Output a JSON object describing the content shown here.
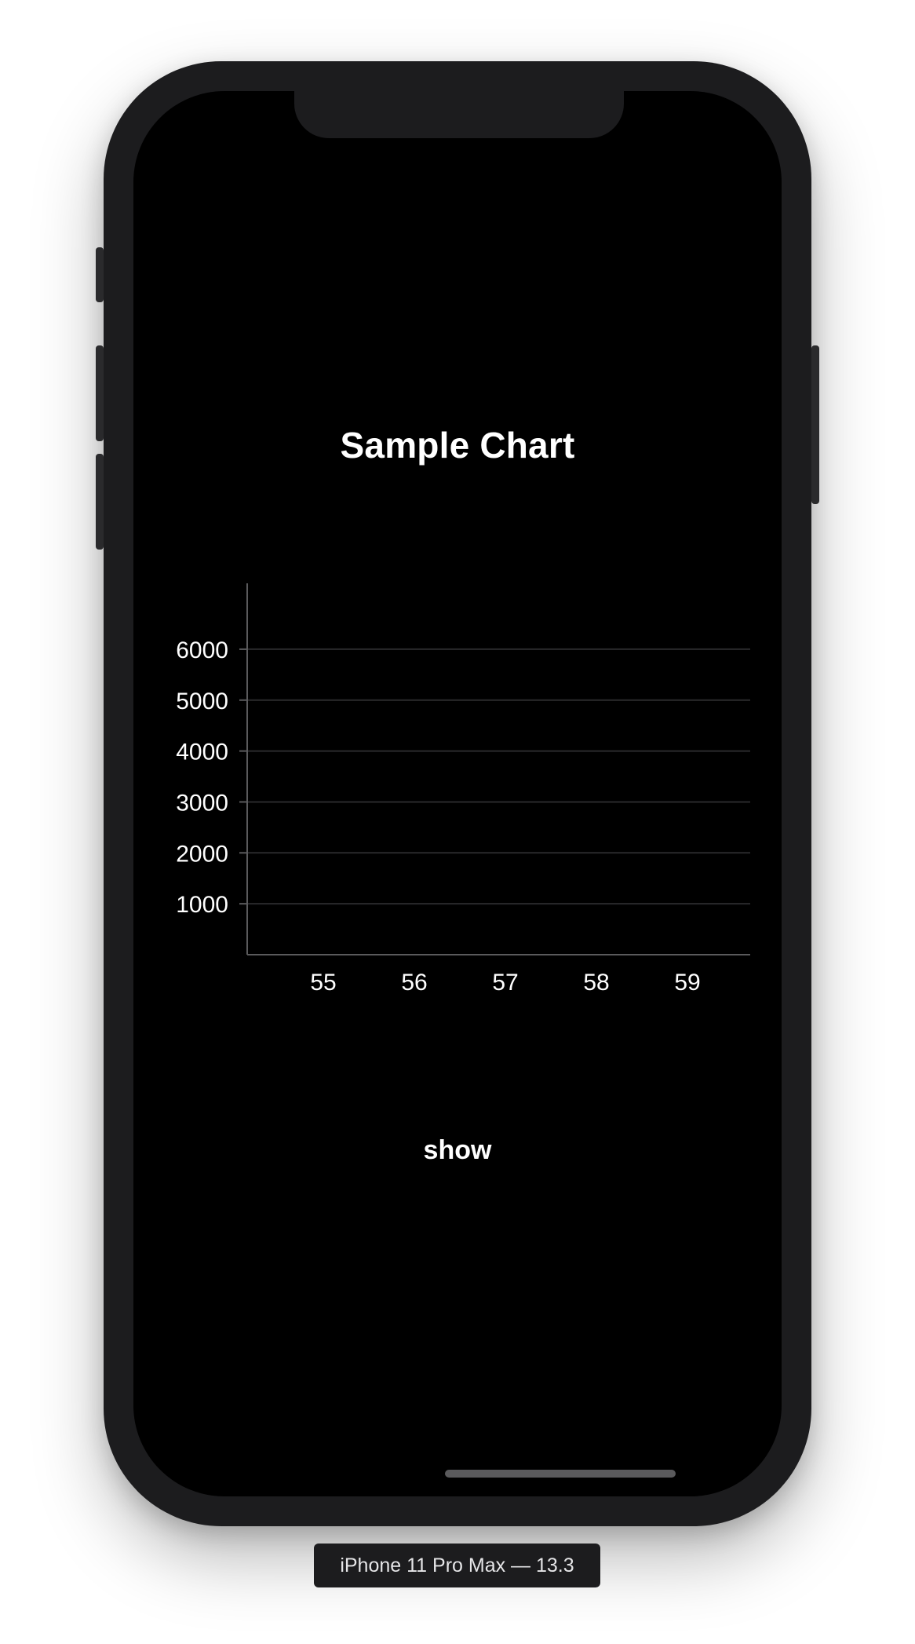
{
  "app": {
    "title": "Sample Chart",
    "button_label": "show"
  },
  "simulator": {
    "device_label": "iPhone 11 Pro Max — 13.3"
  },
  "colors": {
    "screen_background": "#000000",
    "device_frame": "#1c1c1e",
    "text": "#ffffff",
    "gridline": "#2a2a2c",
    "axis": "#5a5a5c"
  },
  "chart_data": {
    "type": "bar",
    "title": "",
    "xlabel": "",
    "ylabel": "",
    "categories": [
      "55",
      "56",
      "57",
      "58",
      "59"
    ],
    "series": [],
    "y_ticks": [
      1000,
      2000,
      3000,
      4000,
      5000,
      6000
    ],
    "ylim": [
      0,
      6600
    ],
    "grid": true,
    "legend": "none"
  }
}
